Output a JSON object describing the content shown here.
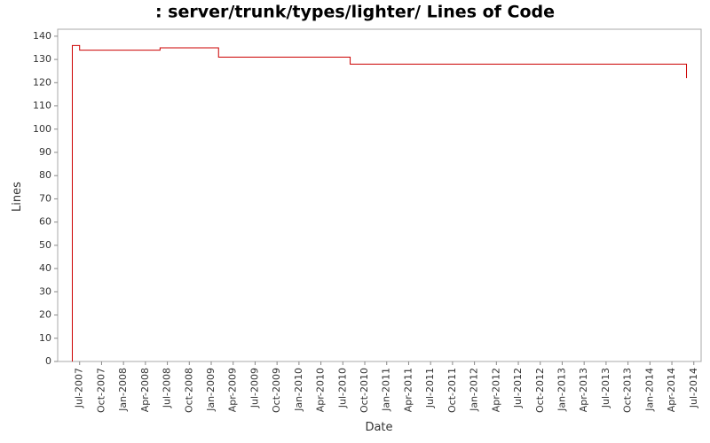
{
  "chart_data": {
    "type": "step-line",
    "title": ": server/trunk/types/lighter/ Lines of Code",
    "x_label": "Date",
    "y_label": "Lines",
    "series": [
      {
        "name": "Lines",
        "color": "#cc0000",
        "x": [
          "2007-06",
          "2007-06",
          "2007-07",
          "2008-06",
          "2009-02",
          "2010-08",
          "2014-06"
        ],
        "values": [
          0,
          136,
          134,
          135,
          131,
          128,
          122
        ]
      }
    ],
    "xlim": [
      "2007-04",
      "2014-08"
    ],
    "ylim": [
      0,
      143
    ],
    "yticks": [
      0,
      10,
      20,
      30,
      40,
      50,
      60,
      70,
      80,
      90,
      100,
      110,
      120,
      130,
      140
    ],
    "xticks": [
      {
        "value": "2007-07",
        "label": "Jul-2007"
      },
      {
        "value": "2007-10",
        "label": "Oct-2007"
      },
      {
        "value": "2008-01",
        "label": "Jan-2008"
      },
      {
        "value": "2008-04",
        "label": "Apr-2008"
      },
      {
        "value": "2008-07",
        "label": "Jul-2008"
      },
      {
        "value": "2008-10",
        "label": "Oct-2008"
      },
      {
        "value": "2009-01",
        "label": "Jan-2009"
      },
      {
        "value": "2009-04",
        "label": "Apr-2009"
      },
      {
        "value": "2009-07",
        "label": "Jul-2009"
      },
      {
        "value": "2009-10",
        "label": "Oct-2009"
      },
      {
        "value": "2010-01",
        "label": "Jan-2010"
      },
      {
        "value": "2010-04",
        "label": "Apr-2010"
      },
      {
        "value": "2010-07",
        "label": "Jul-2010"
      },
      {
        "value": "2010-10",
        "label": "Oct-2010"
      },
      {
        "value": "2011-01",
        "label": "Jan-2011"
      },
      {
        "value": "2011-04",
        "label": "Apr-2011"
      },
      {
        "value": "2011-07",
        "label": "Jul-2011"
      },
      {
        "value": "2011-10",
        "label": "Oct-2011"
      },
      {
        "value": "2012-01",
        "label": "Jan-2012"
      },
      {
        "value": "2012-04",
        "label": "Apr-2012"
      },
      {
        "value": "2012-07",
        "label": "Jul-2012"
      },
      {
        "value": "2012-10",
        "label": "Oct-2012"
      },
      {
        "value": "2013-01",
        "label": "Jan-2013"
      },
      {
        "value": "2013-04",
        "label": "Apr-2013"
      },
      {
        "value": "2013-07",
        "label": "Jul-2013"
      },
      {
        "value": "2013-10",
        "label": "Oct-2013"
      },
      {
        "value": "2014-01",
        "label": "Jan-2014"
      },
      {
        "value": "2014-04",
        "label": "Apr-2014"
      },
      {
        "value": "2014-07",
        "label": "Jul-2014"
      }
    ],
    "grid": false
  }
}
